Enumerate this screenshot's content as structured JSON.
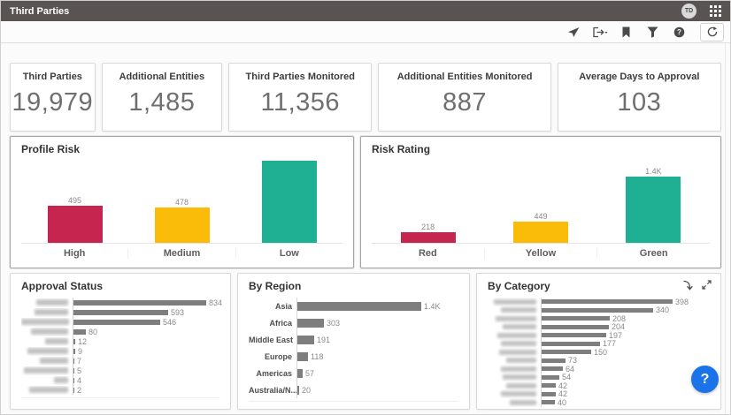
{
  "header": {
    "title": "Third Parties",
    "avatar_initials": "TD"
  },
  "toolbar": {
    "icons": [
      "share",
      "export",
      "bookmark",
      "filter",
      "help",
      "refresh"
    ]
  },
  "kpis": [
    {
      "label": "Third Parties",
      "value": "19,979"
    },
    {
      "label": "Additional Entities",
      "value": "1,485"
    },
    {
      "label": "Third Parties Monitored",
      "value": "11,356"
    },
    {
      "label": "Additional Entities Monitored",
      "value": "887"
    },
    {
      "label": "Average Days to Approval",
      "value": "103"
    }
  ],
  "colors": {
    "high_red": "#c5254e",
    "medium_yellow": "#fbbc09",
    "low_green": "#1fb094",
    "gray_bar": "#7e7e7e",
    "header_bg": "#595354",
    "help_fab_blue": "#1a73e8"
  },
  "help_fab": {
    "label": "?"
  },
  "chart_data": [
    {
      "id": "profile_risk",
      "type": "bar",
      "title": "Profile Risk",
      "categories": [
        "High",
        "Medium",
        "Low"
      ],
      "values": [
        495,
        478,
        1100
      ],
      "labels": [
        "495",
        "478",
        ""
      ],
      "colors": [
        "#c5254e",
        "#fbbc09",
        "#1fb094"
      ],
      "ylim": [
        0,
        1150
      ],
      "note": "Low bar has no visible data label; value estimated from bar height"
    },
    {
      "id": "risk_rating",
      "type": "bar",
      "title": "Risk Rating",
      "categories": [
        "Red",
        "Yellow",
        "Green"
      ],
      "values": [
        218,
        449,
        1400
      ],
      "labels": [
        "218",
        "449",
        "1.4K"
      ],
      "colors": [
        "#c5254e",
        "#fbbc09",
        "#1fb094"
      ],
      "ylim": [
        0,
        1800
      ]
    },
    {
      "id": "approval_status",
      "type": "bar",
      "orientation": "horizontal",
      "title": "Approval Status",
      "categories_redacted": true,
      "redacted_label_widths": [
        36,
        38,
        54,
        42,
        26,
        46,
        32,
        50,
        16,
        44
      ],
      "values": [
        834,
        593,
        546,
        80,
        12,
        9,
        7,
        5,
        4,
        2
      ],
      "labels": [
        "834",
        "593",
        "546",
        "80",
        "12",
        "9",
        "7",
        "5",
        "4",
        "2"
      ],
      "bar_color": "#7e7e7e",
      "xlim": [
        0,
        900
      ]
    },
    {
      "id": "by_region",
      "type": "bar",
      "orientation": "horizontal",
      "title": "By Region",
      "categories": [
        "Asia",
        "Africa",
        "Middle East",
        "Europe",
        "Americas",
        "Australia/N..."
      ],
      "values": [
        1400,
        303,
        191,
        118,
        57,
        20
      ],
      "labels": [
        "1.4K",
        "303",
        "191",
        "118",
        "57",
        "20"
      ],
      "bar_color": "#7e7e7e",
      "xlim": [
        0,
        1500
      ]
    },
    {
      "id": "by_category",
      "type": "bar",
      "orientation": "horizontal",
      "title": "By Category",
      "categories_redacted": true,
      "redacted_label_widths": [
        48,
        40,
        46,
        38,
        44,
        40,
        42,
        34,
        40,
        38,
        34,
        40,
        30
      ],
      "values": [
        398,
        340,
        208,
        204,
        197,
        177,
        150,
        73,
        64,
        54,
        42,
        42,
        40
      ],
      "labels": [
        "398",
        "340",
        "208",
        "204",
        "197",
        "177",
        "150",
        "73",
        "64",
        "54",
        "42",
        "42",
        "40"
      ],
      "bar_color": "#7e7e7e",
      "xlim": [
        0,
        420
      ]
    }
  ]
}
